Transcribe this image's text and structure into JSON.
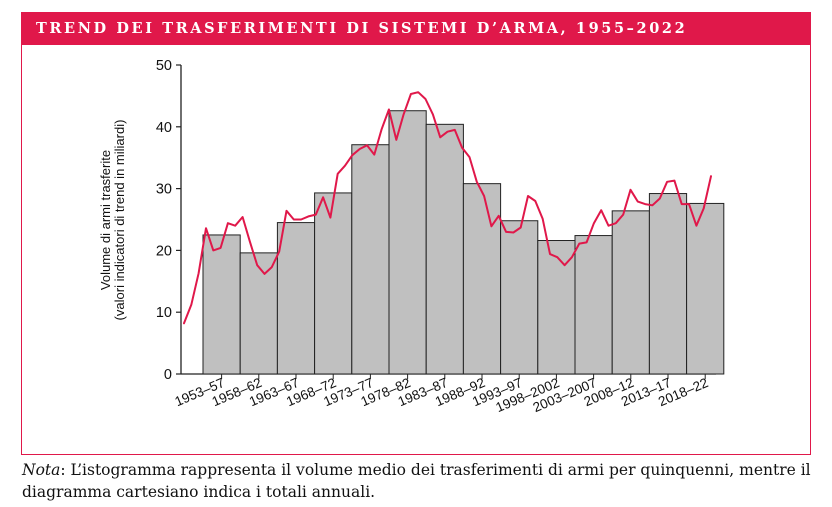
{
  "figure": {
    "title": "TREND DEI TRASFERIMENTI DI SISTEMI D’ARMA, 1955–2022",
    "note_lead": "Nota",
    "note_text": ": L’istogramma rappresenta il volume medio dei trasferimenti di armi per quinquenni, mentre il diagramma cartesiano indica i totali annuali."
  },
  "colors": {
    "accent": "#e0184a",
    "bar_fill": "#c0c0c0",
    "bar_stroke": "#222222",
    "line": "#e0184a"
  },
  "chart_data": {
    "type": "bar",
    "title": "TREND DEI TRASFERIMENTI DI SISTEMI D’ARMA, 1955–2022",
    "ylabel": [
      "Volume di armi trasferite",
      "(valori indicatori di trend in miliardi)"
    ],
    "xlabel": "",
    "ylim": [
      0,
      50
    ],
    "yticks": [
      0,
      10,
      20,
      30,
      40,
      50
    ],
    "grid": false,
    "categories": [
      "1953–57",
      "1958–62",
      "1963–67",
      "1968–72",
      "1973–77",
      "1978–82",
      "1983–87",
      "1988–92",
      "1993–97",
      "1998–2002",
      "2003–2007",
      "2008–12",
      "2013–17",
      "2018–22"
    ],
    "series": [
      {
        "type": "bar",
        "values": [
          22.5,
          19.6,
          24.5,
          29.3,
          37.1,
          42.6,
          40.4,
          30.8,
          24.8,
          21.6,
          22.4,
          26.4,
          29.2,
          27.6
        ]
      },
      {
        "type": "line",
        "x": [
          1950,
          1951,
          1952,
          1953,
          1954,
          1955,
          1956,
          1957,
          1958,
          1959,
          1960,
          1961,
          1962,
          1963,
          1964,
          1965,
          1966,
          1967,
          1968,
          1969,
          1970,
          1971,
          1972,
          1973,
          1974,
          1975,
          1976,
          1977,
          1978,
          1979,
          1980,
          1981,
          1982,
          1983,
          1984,
          1985,
          1986,
          1987,
          1988,
          1989,
          1990,
          1991,
          1992,
          1993,
          1994,
          1995,
          1996,
          1997,
          1998,
          1999,
          2000,
          2001,
          2002,
          2003,
          2004,
          2005,
          2006,
          2007,
          2008,
          2009,
          2010,
          2011,
          2012,
          2013,
          2014,
          2015,
          2016,
          2017,
          2018,
          2019,
          2020,
          2021,
          2022
        ],
        "values": [
          8.2,
          11.2,
          16.3,
          23.6,
          20.0,
          20.4,
          24.4,
          24.0,
          25.4,
          21.4,
          17.6,
          16.2,
          17.3,
          19.8,
          26.4,
          25.0,
          25.0,
          25.5,
          25.8,
          28.6,
          25.3,
          32.4,
          33.7,
          35.4,
          36.4,
          37.0,
          35.5,
          39.6,
          42.8,
          37.9,
          42.0,
          45.3,
          45.6,
          44.5,
          42.0,
          38.3,
          39.2,
          39.5,
          36.6,
          35.1,
          31.1,
          28.8,
          23.9,
          25.6,
          23.0,
          22.9,
          23.7,
          28.8,
          28.0,
          25.1,
          19.4,
          18.9,
          17.6,
          18.9,
          21.1,
          21.3,
          24.4,
          26.5,
          24.0,
          24.4,
          25.8,
          29.8,
          27.9,
          27.5,
          27.3,
          28.4,
          31.1,
          31.3,
          27.5,
          27.5,
          24.0,
          26.8,
          32.0
        ]
      }
    ]
  }
}
